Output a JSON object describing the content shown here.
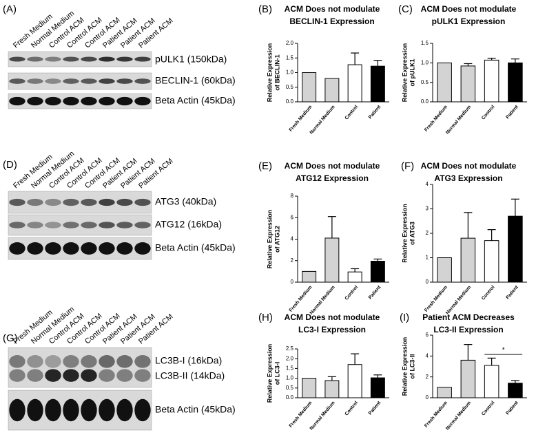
{
  "blots": [
    {
      "label": "(A)",
      "lanes": [
        "Fresh Medium",
        "Normal Medium",
        "Control ACM",
        "Control ACM",
        "Control ACM",
        "Patient ACM",
        "Patient ACM",
        "Patient ACM"
      ],
      "bands": [
        "pULK1 (150kDa)",
        "BECLIN-1 (60kDa)",
        "Beta Actin (45kDa)"
      ]
    },
    {
      "label": "(D)",
      "lanes": [
        "Fresh Medium",
        "Normal Medium",
        "Control ACM",
        "Control ACM",
        "Control ACM",
        "Patient ACM",
        "Patient ACM",
        "Patient ACM"
      ],
      "bands": [
        "ATG3 (40kDa)",
        "ATG12 (16kDa)",
        "Beta Actin (45kDa)"
      ]
    },
    {
      "label": "(G)",
      "lanes": [
        "Fresh Medium",
        "Normal Medium",
        "Control ACM",
        "Control ACM",
        "Control ACM",
        "Patient ACM",
        "Patient ACM",
        "Patient ACM"
      ],
      "bands": [
        "LC3B-I (16kDa)",
        "LC3B-II (14kDa)",
        "Beta Actin (45kDa)"
      ]
    }
  ],
  "chart_data": [
    {
      "type": "bar",
      "label": "(B)",
      "title_lines": [
        "ACM Does not modulate",
        "BECLIN-1 Expression"
      ],
      "ylabel_lines": [
        "Relative Expression",
        "of BECLIN-1"
      ],
      "categories": [
        "Fresh Medium",
        "Normal Medium",
        "Control",
        "Patient"
      ],
      "values": [
        1.0,
        0.8,
        1.27,
        1.22
      ],
      "errors": [
        0,
        0,
        0.4,
        0.2
      ],
      "colors": [
        "#d3d3d3",
        "#d3d3d3",
        "#ffffff",
        "#000000"
      ],
      "ylim": [
        0,
        2
      ],
      "yticks": [
        {
          "value": 0,
          "label": "0.0"
        },
        {
          "value": 0.5,
          "label": "0.5"
        },
        {
          "value": 1,
          "label": "1.0"
        },
        {
          "value": 1.5,
          "label": "1.5"
        },
        {
          "value": 2,
          "label": "2.0"
        }
      ]
    },
    {
      "type": "bar",
      "label": "(C)",
      "title_lines": [
        "ACM Does not modulate",
        "pULK1 Expression"
      ],
      "ylabel_lines": [
        "Relative Expression",
        "of pULK1"
      ],
      "categories": [
        "Fresh Medium",
        "Normal Medium",
        "Control",
        "Patient"
      ],
      "values": [
        1.0,
        0.92,
        1.07,
        1.0
      ],
      "errors": [
        0,
        0.06,
        0.05,
        0.1
      ],
      "colors": [
        "#d3d3d3",
        "#d3d3d3",
        "#ffffff",
        "#000000"
      ],
      "ylim": [
        0,
        1.5
      ],
      "yticks": [
        {
          "value": 0,
          "label": "0.0"
        },
        {
          "value": 0.5,
          "label": "0.5"
        },
        {
          "value": 1,
          "label": "1.0"
        },
        {
          "value": 1.5,
          "label": "1.5"
        }
      ]
    },
    {
      "type": "bar",
      "label": "(E)",
      "title_lines": [
        "ACM Does not modulate",
        "ATG12 Expression"
      ],
      "ylabel_lines": [
        "Relative Expression",
        "of ATG12"
      ],
      "categories": [
        "Fresh Medium",
        "Normal Medium",
        "Control",
        "Patient"
      ],
      "values": [
        1.0,
        4.1,
        0.95,
        1.95
      ],
      "errors": [
        0,
        2.0,
        0.3,
        0.2
      ],
      "colors": [
        "#d3d3d3",
        "#d3d3d3",
        "#ffffff",
        "#000000"
      ],
      "ylim": [
        0,
        8
      ],
      "yticks": [
        0,
        2,
        4,
        6,
        8
      ]
    },
    {
      "type": "bar",
      "label": "(F)",
      "title_lines": [
        "ACM Does not modulate",
        "ATG3 Expression"
      ],
      "ylabel_lines": [
        "Relative Expression",
        "of ATG3"
      ],
      "categories": [
        "Fresh Medium",
        "Normal Medium",
        "Control",
        "Patient"
      ],
      "values": [
        1.0,
        1.8,
        1.7,
        2.7
      ],
      "errors": [
        0,
        1.05,
        0.45,
        0.7
      ],
      "colors": [
        "#d3d3d3",
        "#d3d3d3",
        "#ffffff",
        "#000000"
      ],
      "ylim": [
        0,
        4
      ],
      "yticks": [
        0,
        1,
        2,
        3,
        4
      ]
    },
    {
      "type": "bar",
      "label": "(H)",
      "title_lines": [
        "ACM Does not modulate",
        "LC3-I Expression"
      ],
      "ylabel_lines": [
        "Relative Expression",
        "of LC3-I"
      ],
      "categories": [
        "Fresh Medium",
        "Normal Medium",
        "Control",
        "Patient"
      ],
      "values": [
        1.0,
        0.88,
        1.7,
        1.02
      ],
      "errors": [
        0,
        0.2,
        0.55,
        0.15
      ],
      "colors": [
        "#d3d3d3",
        "#d3d3d3",
        "#ffffff",
        "#000000"
      ],
      "ylim": [
        0,
        2.5
      ],
      "yticks": [
        {
          "value": 0,
          "label": "0.0"
        },
        {
          "value": 0.5,
          "label": "0.5"
        },
        {
          "value": 1,
          "label": "1.0"
        },
        {
          "value": 1.5,
          "label": "1.5"
        },
        {
          "value": 2,
          "label": "2.0"
        },
        {
          "value": 2.5,
          "label": "2.5"
        }
      ]
    },
    {
      "type": "bar",
      "label": "(I)",
      "title_lines": [
        "Patient ACM Decreases",
        "LC3-II Expression"
      ],
      "ylabel_lines": [
        "Relative Expression",
        "of LC3-II"
      ],
      "categories": [
        "Fresh Medium",
        "Normal Medium",
        "Control",
        "Patient"
      ],
      "values": [
        1.0,
        3.6,
        3.1,
        1.4
      ],
      "errors": [
        0,
        1.5,
        0.7,
        0.25
      ],
      "colors": [
        "#d3d3d3",
        "#d3d3d3",
        "#ffffff",
        "#000000"
      ],
      "ylim": [
        0,
        6
      ],
      "yticks": [
        0,
        2,
        4,
        6
      ],
      "annotation": "*"
    }
  ]
}
